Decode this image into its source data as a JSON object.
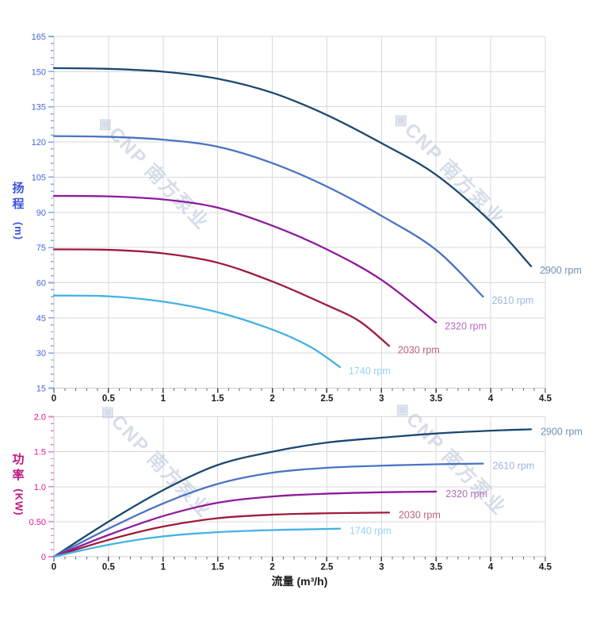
{
  "colors": {
    "background": "#ffffff",
    "grid": "#d8d8d8",
    "axis_line": "#c9ccd6",
    "x_tick": "#3c3c3c",
    "x_minor_tick": "#6a6a6a",
    "x_tick_label": "#1a1a1a",
    "head_tick": "#8fa3e8",
    "head_tick_label": "#4a66d9",
    "head_axis_title": "#3a53e0",
    "power_tick": "#ef83c3",
    "power_tick_label": "#e0189a",
    "power_axis_title": "#c01480",
    "watermark": "#b6c2d8"
  },
  "watermark": {
    "logo_glyph": "◈",
    "text": "CNP 南方泵业"
  },
  "chart_data": [
    {
      "type": "line",
      "title": "",
      "xlabel": "",
      "ylabel": "扬程 (m)",
      "xlim": [
        0,
        4.5
      ],
      "ylim": [
        15,
        165
      ],
      "grid": true,
      "legend_position": "curve-ends-right",
      "x_ticks": [
        0,
        0.5,
        1,
        1.5,
        2,
        2.5,
        3,
        3.5,
        4,
        4.5
      ],
      "x_tick_labels": [
        "0",
        "0.5",
        "1",
        "1.5",
        "2",
        "2.5",
        "3",
        "3.5",
        "4",
        "4.5"
      ],
      "x_minor_step": 0.1,
      "y_ticks": [
        15,
        30,
        45,
        60,
        75,
        90,
        105,
        120,
        135,
        150,
        165
      ],
      "y_tick_labels": [
        "15",
        "30",
        "45",
        "60",
        "75",
        "90",
        "105",
        "120",
        "135",
        "150",
        "165"
      ],
      "y_minor_step": 3,
      "series": [
        {
          "name": "2900 rpm",
          "color": "#1b4971",
          "label_color": "#7191b4",
          "points": [
            [
              0,
              151.5
            ],
            [
              0.5,
              151.2
            ],
            [
              1,
              150
            ],
            [
              1.5,
              147
            ],
            [
              2,
              141
            ],
            [
              2.5,
              131.5
            ],
            [
              3,
              119.5
            ],
            [
              3.5,
              106
            ],
            [
              4,
              86
            ],
            [
              4.37,
              67
            ]
          ]
        },
        {
          "name": "2610 rpm",
          "color": "#4a74c4",
          "label_color": "#9db4e0",
          "points": [
            [
              0,
              122.5
            ],
            [
              0.5,
              122.2
            ],
            [
              1,
              121
            ],
            [
              1.5,
              118
            ],
            [
              2,
              111
            ],
            [
              2.5,
              101
            ],
            [
              3,
              88.5
            ],
            [
              3.5,
              74
            ],
            [
              3.93,
              54
            ]
          ]
        },
        {
          "name": "2320 rpm",
          "color": "#8e1a9c",
          "label_color": "#b569be",
          "points": [
            [
              0,
              97
            ],
            [
              0.5,
              96.8
            ],
            [
              1,
              95.5
            ],
            [
              1.5,
              92
            ],
            [
              2,
              84.3
            ],
            [
              2.5,
              74.2
            ],
            [
              3,
              61.2
            ],
            [
              3.5,
              43
            ]
          ]
        },
        {
          "name": "2030 rpm",
          "color": "#9e1c3c",
          "label_color": "#bb6478",
          "points": [
            [
              0,
              74.2
            ],
            [
              0.5,
              74
            ],
            [
              1,
              72.5
            ],
            [
              1.5,
              68.5
            ],
            [
              2,
              60.5
            ],
            [
              2.5,
              50.4
            ],
            [
              2.8,
              43.5
            ],
            [
              3.07,
              33
            ]
          ]
        },
        {
          "name": "1740 rpm",
          "color": "#43b2e4",
          "label_color": "#93d4f5",
          "points": [
            [
              0,
              54.5
            ],
            [
              0.5,
              54.2
            ],
            [
              1,
              51.9
            ],
            [
              1.5,
              47.4
            ],
            [
              2,
              40
            ],
            [
              2.35,
              32.6
            ],
            [
              2.62,
              24
            ]
          ]
        }
      ]
    },
    {
      "type": "line",
      "title": "",
      "xlabel": "流量 (m³/h)",
      "ylabel": "功率 (KW)",
      "xlim": [
        0,
        4.5
      ],
      "ylim": [
        0,
        2
      ],
      "grid": true,
      "legend_position": "curve-ends-right",
      "x_ticks": [
        0,
        0.5,
        1,
        1.5,
        2,
        2.5,
        3,
        3.5,
        4,
        4.5
      ],
      "x_tick_labels": [
        "0",
        "0.5",
        "1",
        "1.5",
        "2",
        "2.5",
        "3",
        "3.5",
        "4",
        "4.5"
      ],
      "x_minor_step": 0.1,
      "y_ticks": [
        0,
        0.5,
        1,
        1.5,
        2
      ],
      "y_tick_labels": [
        "0",
        "0.50",
        "1.0",
        "1.5",
        "2.0"
      ],
      "y_minor_step": 0.1,
      "series": [
        {
          "name": "2900 rpm",
          "color": "#1b4971",
          "label_color": "#7191b4",
          "points": [
            [
              0,
              0
            ],
            [
              0.5,
              0.5
            ],
            [
              1,
              0.95
            ],
            [
              1.5,
              1.31
            ],
            [
              2,
              1.5
            ],
            [
              2.5,
              1.63
            ],
            [
              3,
              1.7
            ],
            [
              3.5,
              1.76
            ],
            [
              4,
              1.8
            ],
            [
              4.37,
              1.82
            ]
          ]
        },
        {
          "name": "2610 rpm",
          "color": "#4a74c4",
          "label_color": "#9db4e0",
          "points": [
            [
              0,
              0
            ],
            [
              0.5,
              0.4
            ],
            [
              1,
              0.76
            ],
            [
              1.5,
              1.04
            ],
            [
              2,
              1.2
            ],
            [
              2.5,
              1.27
            ],
            [
              3,
              1.3
            ],
            [
              3.5,
              1.32
            ],
            [
              3.93,
              1.33
            ]
          ]
        },
        {
          "name": "2320 rpm",
          "color": "#8e1a9c",
          "label_color": "#b569be",
          "points": [
            [
              0,
              0
            ],
            [
              0.5,
              0.31
            ],
            [
              1,
              0.58
            ],
            [
              1.5,
              0.77
            ],
            [
              2,
              0.86
            ],
            [
              2.5,
              0.9
            ],
            [
              3,
              0.92
            ],
            [
              3.5,
              0.93
            ]
          ]
        },
        {
          "name": "2030 rpm",
          "color": "#9e1c3c",
          "label_color": "#bb6478",
          "points": [
            [
              0,
              0
            ],
            [
              0.5,
              0.24
            ],
            [
              1,
              0.43
            ],
            [
              1.5,
              0.55
            ],
            [
              2,
              0.6
            ],
            [
              2.5,
              0.62
            ],
            [
              3.07,
              0.63
            ]
          ]
        },
        {
          "name": "1740 rpm",
          "color": "#43b2e4",
          "label_color": "#93d4f5",
          "points": [
            [
              0,
              0
            ],
            [
              0.5,
              0.17
            ],
            [
              1,
              0.29
            ],
            [
              1.5,
              0.35
            ],
            [
              2,
              0.38
            ],
            [
              2.3,
              0.39
            ],
            [
              2.62,
              0.4
            ]
          ]
        }
      ]
    }
  ]
}
